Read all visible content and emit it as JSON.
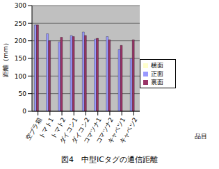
{
  "chart_data": {
    "type": "bar",
    "title": "図4　中型ICタグの通信距離",
    "x_label": "品目",
    "y_label": "距離（mm）",
    "categories": [
      "空プラ箱",
      "トマト1",
      "トマト2",
      "ダイコン1",
      "ダイコン2",
      "コマツナ1",
      "コマツナ2",
      "キャベツ1",
      "キャベツ2"
    ],
    "series": [
      {
        "name": "正面",
        "color": "#9999FF",
        "values": [
          245,
          220,
          197,
          215,
          225,
          205,
          212,
          175,
          150
        ]
      },
      {
        "name": "裏面",
        "color": "#993366",
        "values": [
          245,
          200,
          210,
          212,
          215,
          207,
          203,
          187,
          203
        ]
      },
      {
        "name": "横面",
        "color": "#FFFFCC",
        "values": [
          null,
          null,
          null,
          null,
          null,
          null,
          null,
          null,
          null
        ]
      }
    ],
    "ylim": [
      0,
      300
    ],
    "yticks": [
      0,
      50,
      100,
      150,
      200,
      250,
      300
    ],
    "grid": true,
    "legend": "right"
  }
}
